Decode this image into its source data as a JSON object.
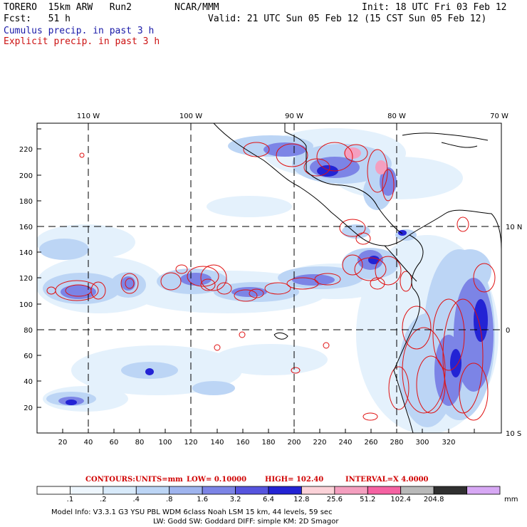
{
  "header": {
    "model": "TORERO  15km ARW   Run2",
    "org": "NCAR/MMM",
    "init": "Init: 18 UTC Fri 03 Feb 12",
    "fcst": "Fcst:   51 h",
    "valid": "Valid: 21 UTC Sun 05 Feb 12 (15 CST Sun 05 Feb 12)",
    "cumulus_label": "Cumulus precip. in past 3 h",
    "explicit_label": "Explicit precip. in past 3 h"
  },
  "map": {
    "lon_labels": [
      "110 W",
      "100 W",
      "90 W",
      "80 W",
      "70 W"
    ],
    "lat_labels": [
      "10 N",
      "0",
      "10 S"
    ],
    "x_ticks": [
      "20",
      "40",
      "60",
      "80",
      "100",
      "120",
      "140",
      "160",
      "180",
      "200",
      "220",
      "240",
      "260",
      "280",
      "300",
      "320"
    ],
    "y_ticks": [
      "20",
      "40",
      "60",
      "80",
      "100",
      "120",
      "140",
      "160",
      "180",
      "200",
      "220"
    ]
  },
  "contours_line": {
    "prefix": "CONTOURS:",
    "units": "UNITS=mm",
    "low": "LOW= 0.10000",
    "high": "HIGH= 102.40",
    "interval": "INTERVAL=X 4.0000"
  },
  "colorbar": {
    "colors": [
      "#ffffff",
      "#eef6fd",
      "#d8eafa",
      "#bcd5f5",
      "#9fb4ee",
      "#7c84e6",
      "#5654de",
      "#2323d4",
      "#fbd2d8",
      "#f49fbf",
      "#f562a2",
      "#b9b9b9",
      "#303030",
      "#d7a8f4"
    ],
    "labels": [
      ".1",
      ".2",
      ".4",
      ".8",
      "1.6",
      "3.2",
      "6.4",
      "12.8",
      "25.6",
      "51.2",
      "102.4",
      "204.8"
    ],
    "unit": "mm"
  },
  "footer": {
    "line1": "Model Info: V3.3.1    G3       YSU PBL   WDM 6class  Noah LSM  15 km,     44 levels,    59 sec",
    "line2": "LW: Godd SW: Goddard DIFF: simple KM: 2D Smagor"
  }
}
